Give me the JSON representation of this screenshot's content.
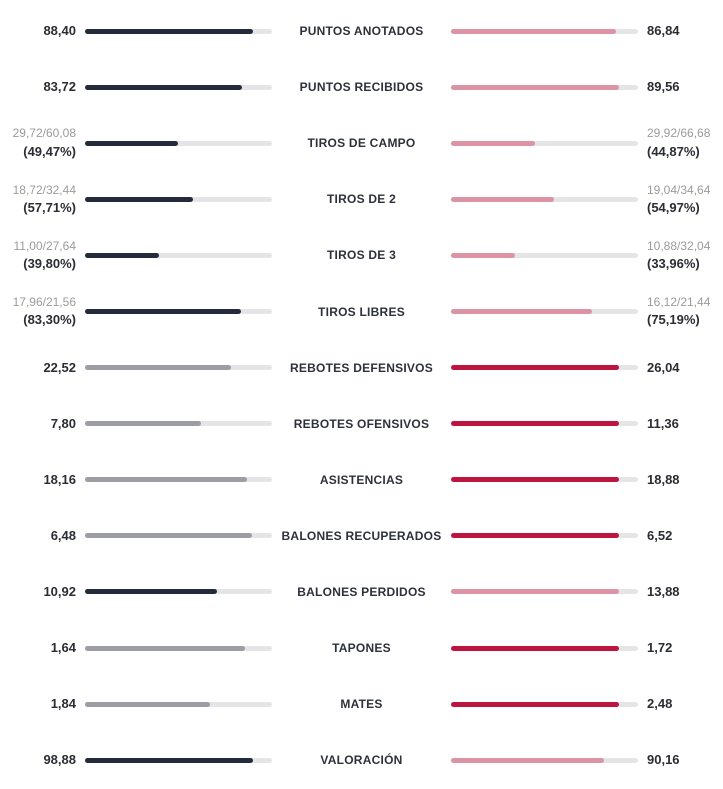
{
  "page": {
    "background": "#ffffff"
  },
  "colors": {
    "home_strong": "#242C3B",
    "home_muted": "#9C9EA3",
    "away_strong": "#BE1440",
    "away_muted": "#DC93A6",
    "track": "#E5E5E7",
    "value_text": "#2B2D33",
    "label_text": "#2E3139",
    "fraction_text": "#9B9B9B"
  },
  "chart_data": {
    "type": "bar",
    "layout": "horizontal-mirror-comparison",
    "legend_position": "none",
    "grid": false,
    "winner_fill_fraction": 0.9,
    "rows": [
      {
        "label": "PUNTOS ANOTADOS",
        "highlight": "left",
        "left": {
          "display": "88,40",
          "value": 88.4
        },
        "right": {
          "display": "86,84",
          "value": 86.84
        }
      },
      {
        "label": "PUNTOS RECIBIDOS",
        "highlight": "left",
        "left": {
          "display": "83,72",
          "value": 83.72
        },
        "right": {
          "display": "89,56",
          "value": 89.56
        }
      },
      {
        "label": "TIROS DE CAMPO",
        "highlight": "left",
        "left": {
          "made_attempted": "29,72/60,08",
          "display": "(49,47%)",
          "value": 49.47,
          "is_pct": true
        },
        "right": {
          "made_attempted": "29,92/66,68",
          "display": "(44,87%)",
          "value": 44.87,
          "is_pct": true
        }
      },
      {
        "label": "TIROS DE 2",
        "highlight": "left",
        "left": {
          "made_attempted": "18,72/32,44",
          "display": "(57,71%)",
          "value": 57.71,
          "is_pct": true
        },
        "right": {
          "made_attempted": "19,04/34,64",
          "display": "(54,97%)",
          "value": 54.97,
          "is_pct": true
        }
      },
      {
        "label": "TIROS DE 3",
        "highlight": "left",
        "left": {
          "made_attempted": "11,00/27,64",
          "display": "(39,80%)",
          "value": 39.8,
          "is_pct": true
        },
        "right": {
          "made_attempted": "10,88/32,04",
          "display": "(33,96%)",
          "value": 33.96,
          "is_pct": true
        }
      },
      {
        "label": "TIROS LIBRES",
        "highlight": "left",
        "left": {
          "made_attempted": "17,96/21,56",
          "display": "(83,30%)",
          "value": 83.3,
          "is_pct": true
        },
        "right": {
          "made_attempted": "16,12/21,44",
          "display": "(75,19%)",
          "value": 75.19,
          "is_pct": true
        }
      },
      {
        "label": "REBOTES DEFENSIVOS",
        "highlight": "right",
        "left": {
          "display": "22,52",
          "value": 22.52
        },
        "right": {
          "display": "26,04",
          "value": 26.04
        }
      },
      {
        "label": "REBOTES OFENSIVOS",
        "highlight": "right",
        "left": {
          "display": "7,80",
          "value": 7.8
        },
        "right": {
          "display": "11,36",
          "value": 11.36
        }
      },
      {
        "label": "ASISTENCIAS",
        "highlight": "right",
        "left": {
          "display": "18,16",
          "value": 18.16
        },
        "right": {
          "display": "18,88",
          "value": 18.88
        }
      },
      {
        "label": "BALONES RECUPERADOS",
        "highlight": "right",
        "left": {
          "display": "6,48",
          "value": 6.48
        },
        "right": {
          "display": "6,52",
          "value": 6.52
        }
      },
      {
        "label": "BALONES PERDIDOS",
        "highlight": "left",
        "left": {
          "display": "10,92",
          "value": 10.92
        },
        "right": {
          "display": "13,88",
          "value": 13.88
        }
      },
      {
        "label": "TAPONES",
        "highlight": "right",
        "left": {
          "display": "1,64",
          "value": 1.64
        },
        "right": {
          "display": "1,72",
          "value": 1.72
        }
      },
      {
        "label": "MATES",
        "highlight": "right",
        "left": {
          "display": "1,84",
          "value": 1.84
        },
        "right": {
          "display": "2,48",
          "value": 2.48
        }
      },
      {
        "label": "VALORACIÓN",
        "highlight": "left",
        "left": {
          "display": "98,88",
          "value": 98.88
        },
        "right": {
          "display": "90,16",
          "value": 90.16
        }
      }
    ]
  }
}
